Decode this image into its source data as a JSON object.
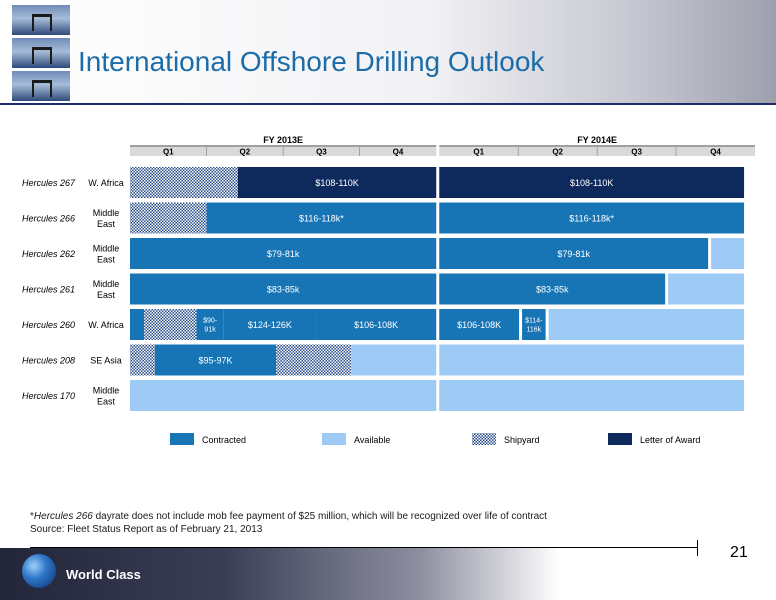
{
  "header": {
    "title": "International Offshore Drilling Outlook"
  },
  "footer": {
    "note_italic": "Hercules 266",
    "note_rest": " dayrate does not include mob fee payment of $25 million, which will be recognized over life of contract",
    "note_star": "*",
    "source": "Source: Fleet Status Report as of February 21, 2013",
    "tagline": "World Class",
    "page_number": "21"
  },
  "chart_data": {
    "type": "timeline",
    "years": [
      {
        "label": "FY 2013E",
        "quarters": [
          "Q1",
          "Q2",
          "Q3",
          "Q4"
        ]
      },
      {
        "label": "FY 2014E",
        "quarters": [
          "Q1",
          "Q2",
          "Q3",
          "Q4"
        ]
      }
    ],
    "x_unit": "quarters from start of FY 2013E",
    "colors": {
      "Contracted": "#1775b6",
      "Available": "#9ecbf5",
      "Shipyard": "#1f3f7a",
      "Letter of Award": "#0e2a5c"
    },
    "legend": [
      "Contracted",
      "Available",
      "Shipyard",
      "Letter of Award"
    ],
    "legend_position": "bottom",
    "rows": [
      {
        "rig": "Hercules 267",
        "region": [
          "W. Africa"
        ],
        "segments": [
          {
            "start": 0,
            "end": 1.38,
            "status": "Shipyard",
            "label": ""
          },
          {
            "start": 1.38,
            "end": 3.92,
            "status": "Letter of Award",
            "label": "$108-110K"
          },
          {
            "start": 3.92,
            "end": 7.86,
            "status": "Letter of Award",
            "label": "$108-110K"
          }
        ]
      },
      {
        "rig": "Hercules 266",
        "region": [
          "Middle",
          "East"
        ],
        "segments": [
          {
            "start": 0,
            "end": 0.98,
            "status": "Shipyard",
            "label": ""
          },
          {
            "start": 0.98,
            "end": 3.92,
            "status": "Contracted",
            "label": "$116-118k*"
          },
          {
            "start": 3.92,
            "end": 7.86,
            "status": "Contracted",
            "label": "$116-118k*"
          }
        ]
      },
      {
        "rig": "Hercules 262",
        "region": [
          "Middle",
          "East"
        ],
        "segments": [
          {
            "start": 0,
            "end": 3.92,
            "status": "Contracted",
            "label": "$79-81k"
          },
          {
            "start": 3.92,
            "end": 7.4,
            "status": "Contracted",
            "label": "$79-81k"
          },
          {
            "start": 7.4,
            "end": 7.86,
            "status": "Available",
            "label": ""
          }
        ]
      },
      {
        "rig": "Hercules 261",
        "region": [
          "Middle",
          "East"
        ],
        "segments": [
          {
            "start": 0,
            "end": 3.92,
            "status": "Contracted",
            "label": "$83-85k"
          },
          {
            "start": 3.92,
            "end": 6.85,
            "status": "Contracted",
            "label": "$83-85k"
          },
          {
            "start": 6.85,
            "end": 7.86,
            "status": "Available",
            "label": ""
          }
        ]
      },
      {
        "rig": "Hercules 260",
        "region": [
          "W. Africa"
        ],
        "segments": [
          {
            "start": 0,
            "end": 0.18,
            "status": "Contracted",
            "label": ""
          },
          {
            "start": 0.18,
            "end": 0.85,
            "status": "Shipyard",
            "label": ""
          },
          {
            "start": 0.85,
            "end": 1.2,
            "status": "Contracted",
            "label": [
              "$90-",
              "91k"
            ]
          },
          {
            "start": 1.2,
            "end": 2.38,
            "status": "Contracted",
            "label": "$124-126K"
          },
          {
            "start": 2.38,
            "end": 3.92,
            "status": "Contracted",
            "label": "$106-108K"
          },
          {
            "start": 3.92,
            "end": 4.98,
            "status": "Contracted",
            "label": "$106-108K"
          },
          {
            "start": 4.98,
            "end": 5.32,
            "status": "Contracted",
            "label": [
              "$114-",
              "116k"
            ]
          },
          {
            "start": 5.32,
            "end": 7.86,
            "status": "Available",
            "label": ""
          }
        ]
      },
      {
        "rig": "Hercules 208",
        "region": [
          "SE Asia"
        ],
        "segments": [
          {
            "start": 0,
            "end": 0.32,
            "status": "Shipyard",
            "label": ""
          },
          {
            "start": 0.32,
            "end": 1.87,
            "status": "Contracted",
            "label": "$95-97K"
          },
          {
            "start": 1.87,
            "end": 2.83,
            "status": "Shipyard",
            "label": ""
          },
          {
            "start": 2.83,
            "end": 3.92,
            "status": "Available",
            "label": ""
          },
          {
            "start": 3.92,
            "end": 7.86,
            "status": "Available",
            "label": ""
          }
        ]
      },
      {
        "rig": "Hercules 170",
        "region": [
          "Middle",
          "East"
        ],
        "segments": [
          {
            "start": 0,
            "end": 3.92,
            "status": "Available",
            "label": ""
          },
          {
            "start": 3.92,
            "end": 7.86,
            "status": "Available",
            "label": ""
          }
        ]
      }
    ]
  }
}
